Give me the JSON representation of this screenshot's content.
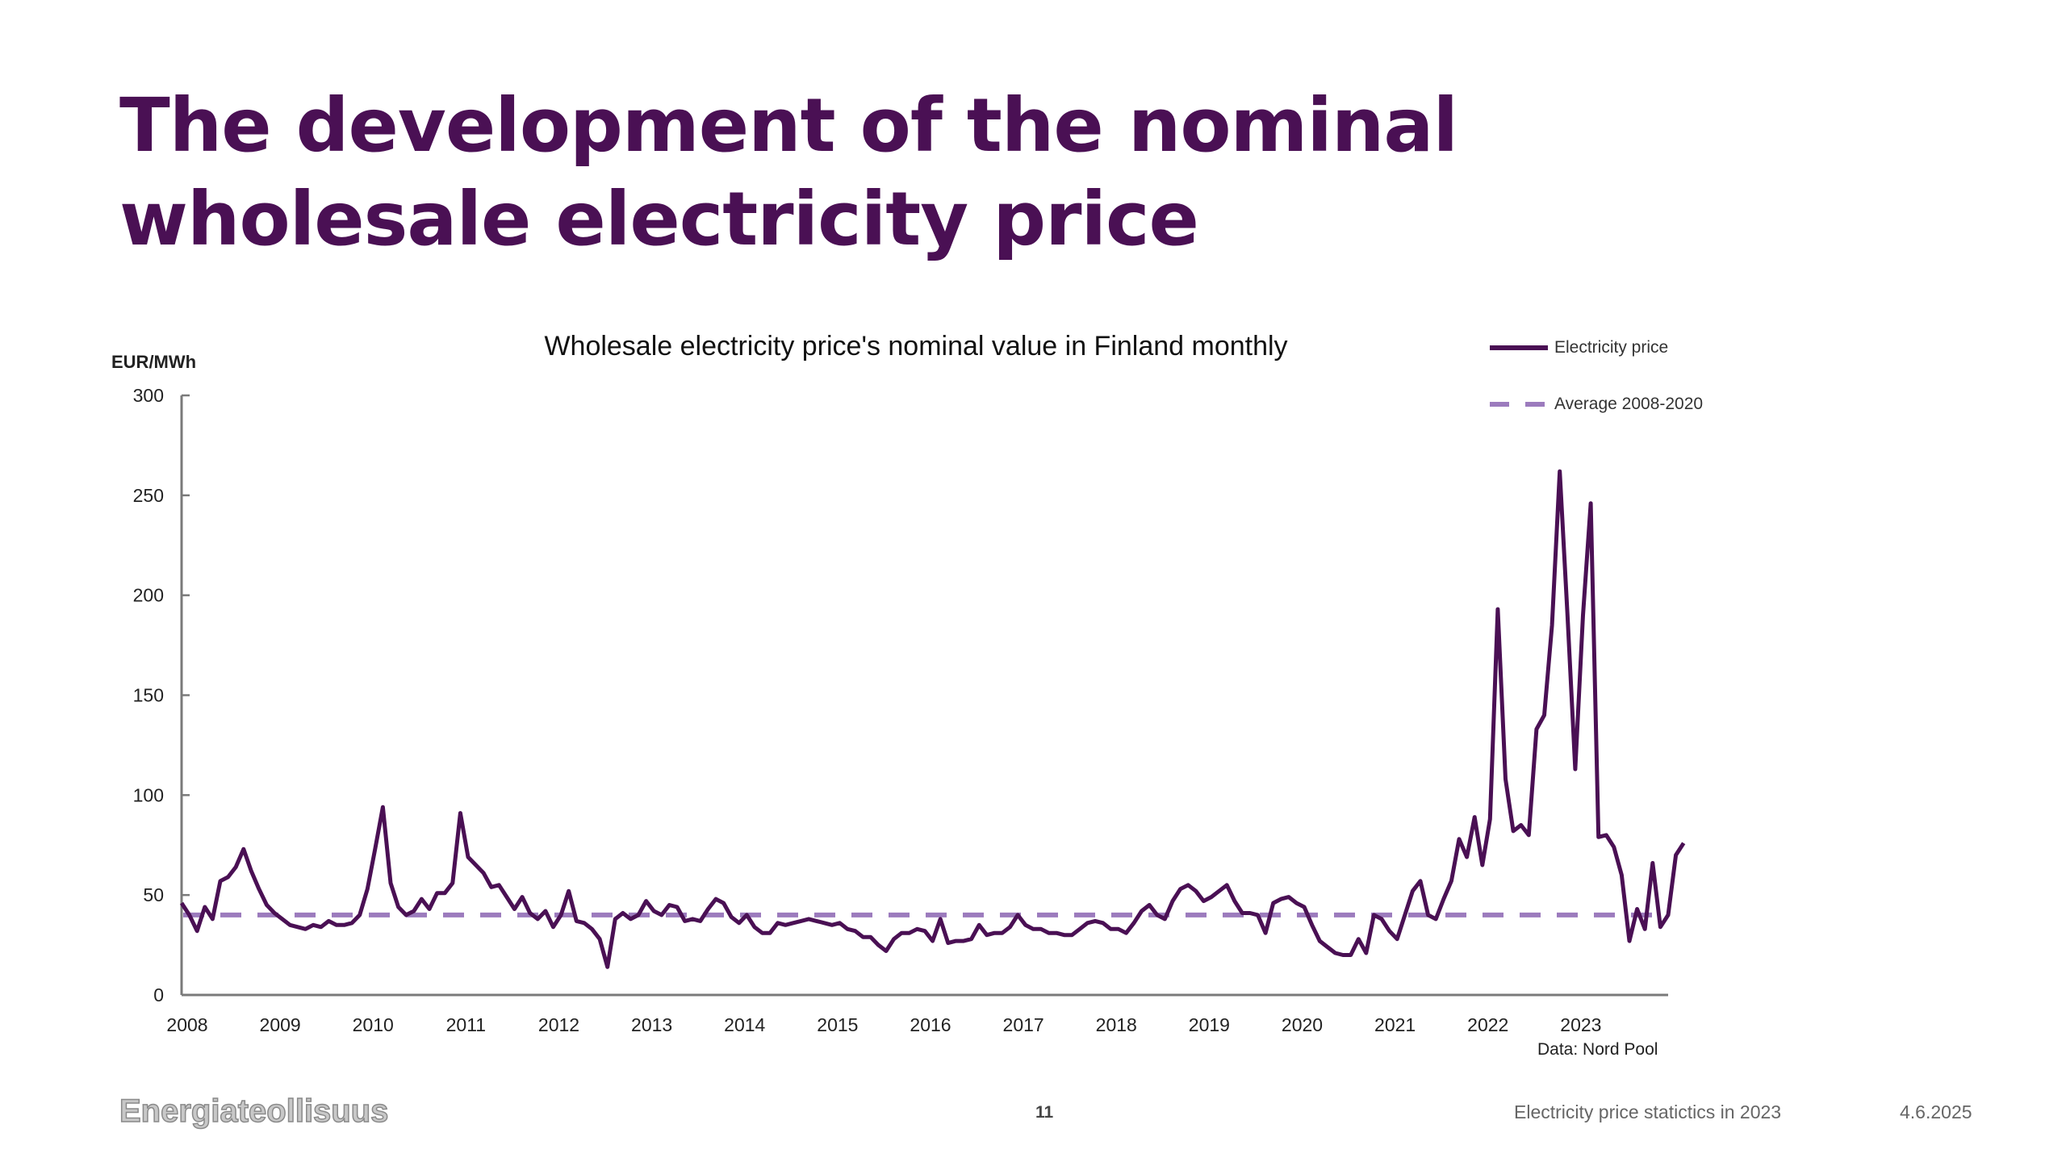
{
  "slide": {
    "title": "The development of the nominal wholesale electricity price",
    "footer": {
      "logo_text": "Energiateollisuus",
      "page_number": "11",
      "center_text": "Electricity price statictics in 2023",
      "date": "4.6.2025"
    }
  },
  "colors": {
    "title": "#4a1054",
    "price_line": "#4a1054",
    "average_line": "#9c7bbd"
  },
  "chart_data": {
    "type": "line",
    "title": "Wholesale electricity price's nominal value in Finland monthly",
    "xlabel": "",
    "ylabel": "EUR/MWh",
    "ylim": [
      0,
      300
    ],
    "yticks": [
      0,
      50,
      100,
      150,
      200,
      250,
      300
    ],
    "xtick_labels": [
      "2008",
      "2009",
      "2010",
      "2011",
      "2012",
      "2013",
      "2014",
      "2015",
      "2016",
      "2017",
      "2018",
      "2019",
      "2020",
      "2021",
      "2022",
      "2023"
    ],
    "x_start": "2008-01",
    "x_frequency": "monthly",
    "grid": false,
    "legend_position": "top-right",
    "source": "Data: Nord Pool",
    "series": [
      {
        "name": "Electricity price",
        "style": "solid",
        "values": [
          46,
          40,
          32,
          44,
          38,
          57,
          59,
          64,
          73,
          62,
          53,
          45,
          41,
          38,
          35,
          34,
          33,
          35,
          34,
          37,
          35,
          35,
          36,
          40,
          53,
          73,
          94,
          56,
          44,
          40,
          42,
          48,
          43,
          51,
          51,
          56,
          91,
          69,
          65,
          61,
          54,
          55,
          49,
          43,
          49,
          41,
          38,
          42,
          34,
          40,
          52,
          37,
          36,
          33,
          28,
          14,
          38,
          41,
          38,
          40,
          47,
          42,
          40,
          45,
          44,
          37,
          38,
          37,
          43,
          48,
          46,
          39,
          36,
          40,
          34,
          31,
          31,
          36,
          35,
          36,
          37,
          38,
          37,
          36,
          35,
          36,
          33,
          32,
          29,
          29,
          25,
          22,
          28,
          31,
          31,
          33,
          32,
          27,
          38,
          26,
          27,
          27,
          28,
          35,
          30,
          31,
          31,
          34,
          40,
          35,
          33,
          33,
          31,
          31,
          30,
          30,
          33,
          36,
          37,
          36,
          33,
          33,
          31,
          36,
          42,
          45,
          40,
          38,
          47,
          53,
          55,
          52,
          47,
          49,
          52,
          55,
          47,
          41,
          41,
          40,
          31,
          46,
          48,
          49,
          46,
          44,
          35,
          27,
          24,
          21,
          20,
          20,
          28,
          21,
          40,
          38,
          32,
          28,
          40,
          52,
          57,
          40,
          38,
          48,
          57,
          78,
          69,
          89,
          65,
          88,
          193,
          108,
          82,
          85,
          80,
          133,
          140,
          185,
          262,
          190,
          113,
          190,
          246,
          79,
          80,
          74,
          60,
          27,
          43,
          33,
          66,
          34,
          40,
          70,
          76
        ]
      },
      {
        "name": "Average 2008-2020",
        "style": "dashed",
        "value": 40
      }
    ]
  }
}
